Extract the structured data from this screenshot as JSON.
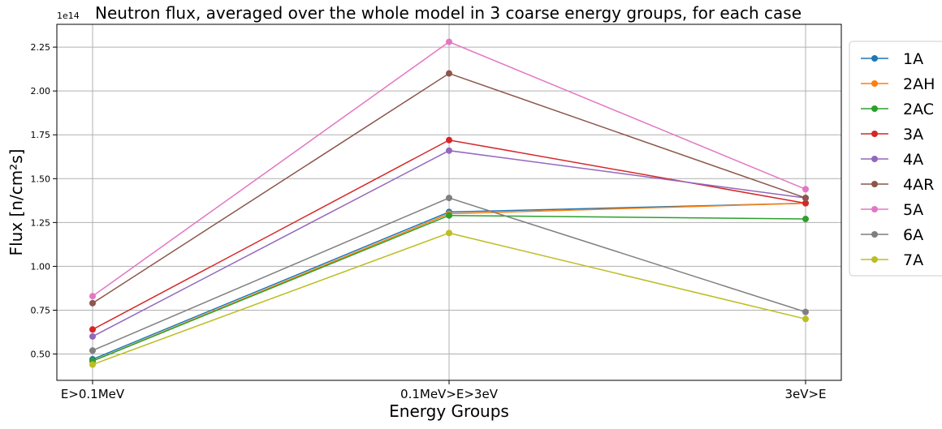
{
  "chart_data": {
    "type": "line",
    "title": "Neutron flux, averaged over the whole model in 3 coarse energy groups, for each case",
    "xlabel": "Energy Groups",
    "ylabel": "Flux [n/cm²s]",
    "y_offset_label": "1e14",
    "categories": [
      "E>0.1MeV",
      "0.1MeV>E>3eV",
      "3eV>E"
    ],
    "ylim": [
      0.35,
      2.38
    ],
    "yticks": [
      0.5,
      0.75,
      1.0,
      1.25,
      1.5,
      1.75,
      2.0,
      2.25
    ],
    "ytick_labels": [
      "0.50",
      "0.75",
      "1.00",
      "1.25",
      "1.50",
      "1.75",
      "2.00",
      "2.25"
    ],
    "grid": true,
    "legend_position": "outside-right",
    "series": [
      {
        "name": "1A",
        "color": "#1f77b4",
        "values": [
          0.47,
          1.31,
          1.36
        ]
      },
      {
        "name": "2AH",
        "color": "#ff7f0e",
        "values": [
          0.46,
          1.3,
          1.36
        ]
      },
      {
        "name": "2AC",
        "color": "#2ca02c",
        "values": [
          0.46,
          1.29,
          1.27
        ]
      },
      {
        "name": "3A",
        "color": "#d62728",
        "values": [
          0.64,
          1.72,
          1.36
        ]
      },
      {
        "name": "4A",
        "color": "#9467bd",
        "values": [
          0.6,
          1.66,
          1.39
        ]
      },
      {
        "name": "4AR",
        "color": "#8c564b",
        "values": [
          0.79,
          2.1,
          1.39
        ]
      },
      {
        "name": "5A",
        "color": "#e377c2",
        "values": [
          0.83,
          2.28,
          1.44
        ]
      },
      {
        "name": "6A",
        "color": "#7f7f7f",
        "values": [
          0.52,
          1.39,
          0.74
        ]
      },
      {
        "name": "7A",
        "color": "#bcbd22",
        "values": [
          0.44,
          1.19,
          0.7
        ]
      }
    ]
  }
}
